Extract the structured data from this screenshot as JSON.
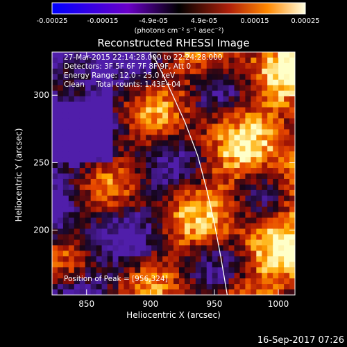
{
  "colorbar": {
    "tick_labels": [
      "-0.00025",
      "-0.00015",
      "-4.9e-05",
      "4.9e-05",
      "0.00015",
      "0.00025"
    ],
    "unit_label": "(photons cm⁻² s⁻¹ asec⁻²)"
  },
  "chart_data": {
    "type": "heatmap",
    "title": "Reconstructed RHESSI Image",
    "xlabel": "Heliocentric X (arcsec)",
    "ylabel": "Heliocentric Y (arcsec)",
    "xlim": [
      823,
      1013
    ],
    "ylim": [
      152,
      332
    ],
    "xticks": [
      "850",
      "900",
      "950",
      "1000"
    ],
    "yticks": [
      "200",
      "250",
      "300"
    ],
    "color_range": [
      -0.00025,
      0.00025
    ],
    "peak": [
      956,
      324
    ],
    "limb_curve": [
      [
        902,
        330
      ],
      [
        915,
        305
      ],
      [
        927,
        280
      ],
      [
        937,
        255
      ],
      [
        944,
        230
      ],
      [
        950,
        205
      ],
      [
        955,
        180
      ],
      [
        960,
        152
      ]
    ],
    "annotations": {
      "time": "27-Mar-2015 22:14:28.000 to 22:24:28.000",
      "detectors": "Detectors: 3F 5F 6F 7F 8F 9F, Att 0",
      "energy": "Energy Range: 12.0 - 25.0 keV",
      "clean": "Clean     Total counts: 1.43E+04",
      "peak_label": "Position of Peak = [956,324]"
    }
  },
  "footer_timestamp": "16-Sep-2017 07:26"
}
